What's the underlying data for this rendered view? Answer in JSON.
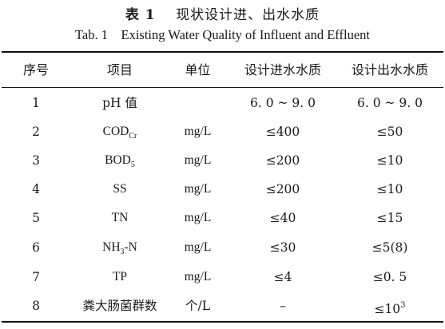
{
  "caption": {
    "label_cn": "表 1",
    "title_cn": "现状设计进、出水水质",
    "label_en": "Tab. 1",
    "title_en": "Existing Water Quality of Influent and Effluent"
  },
  "table": {
    "headers": [
      "序号",
      "项目",
      "单位",
      "设计进水水质",
      "设计出水水质"
    ],
    "rows": [
      {
        "no": "1",
        "item": "pH 值",
        "unit": "",
        "influent": "6. 0 ~ 9. 0",
        "effluent": "6. 0 ~ 9. 0"
      },
      {
        "no": "2",
        "item": "COD",
        "item_sub": "Cr",
        "unit": "mg/L",
        "influent": "≤400",
        "effluent": "≤50"
      },
      {
        "no": "3",
        "item": "BOD",
        "item_sub": "5",
        "unit": "mg/L",
        "influent": "≤200",
        "effluent": "≤10"
      },
      {
        "no": "4",
        "item": "SS",
        "unit": "mg/L",
        "influent": "≤200",
        "effluent": "≤10"
      },
      {
        "no": "5",
        "item": "TN",
        "unit": "mg/L",
        "influent": "≤40",
        "effluent": "≤15"
      },
      {
        "no": "6",
        "item": "NH",
        "item_sub": "3",
        "item_tail": "-N",
        "unit": "mg/L",
        "influent": "≤30",
        "effluent": "≤5(8)"
      },
      {
        "no": "7",
        "item": "TP",
        "unit": "mg/L",
        "influent": "≤4",
        "effluent": "≤0. 5"
      },
      {
        "no": "8",
        "item": "粪大肠菌群数",
        "unit": "个/L",
        "influent": "–",
        "effluent": "≤10",
        "effluent_sup": "3"
      }
    ]
  }
}
